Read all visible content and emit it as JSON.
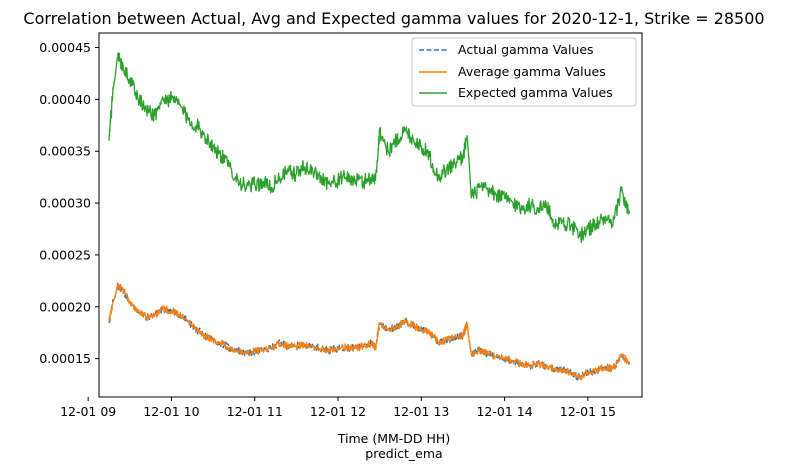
{
  "chart_data": {
    "type": "line",
    "title": "Correlation between Actual, Avg and Expected gamma values for 2020-12-1, Strike = 28500",
    "xlabel": "Time (MM-DD HH)",
    "xlabel2": "predict_ema",
    "ylabel": "",
    "xlim": [
      9.13,
      15.65
    ],
    "ylim": [
      0.000113,
      0.000464
    ],
    "x_ticks": [
      {
        "value": 9,
        "label": "12-01 09"
      },
      {
        "value": 10,
        "label": "12-01 10"
      },
      {
        "value": 11,
        "label": "12-01 11"
      },
      {
        "value": 12,
        "label": "12-01 12"
      },
      {
        "value": 13,
        "label": "12-01 13"
      },
      {
        "value": 14,
        "label": "12-01 14"
      },
      {
        "value": 15,
        "label": "12-01 15"
      }
    ],
    "y_ticks": [
      {
        "value": 0.00015,
        "label": "0.00015"
      },
      {
        "value": 0.0002,
        "label": "0.00020"
      },
      {
        "value": 0.00025,
        "label": "0.00025"
      },
      {
        "value": 0.0003,
        "label": "0.00030"
      },
      {
        "value": 0.00035,
        "label": "0.00035"
      },
      {
        "value": 0.0004,
        "label": "0.00040"
      },
      {
        "value": 0.00045,
        "label": "0.00045"
      }
    ],
    "grid": false,
    "legend_position": "top-right",
    "series": [
      {
        "name": "Actual gamma Values",
        "color": "#1f77b4",
        "style": "dashed",
        "x": [
          9.25,
          9.3,
          9.35,
          9.4,
          9.5,
          9.6,
          9.7,
          9.8,
          9.9,
          10.0,
          10.1,
          10.2,
          10.3,
          10.4,
          10.5,
          10.6,
          10.7,
          10.8,
          10.9,
          11.0,
          11.1,
          11.2,
          11.3,
          11.4,
          11.5,
          11.6,
          11.7,
          11.8,
          11.9,
          12.0,
          12.1,
          12.2,
          12.3,
          12.4,
          12.45,
          12.5,
          12.6,
          12.7,
          12.8,
          12.9,
          13.0,
          13.1,
          13.2,
          13.3,
          13.4,
          13.5,
          13.55,
          13.6,
          13.7,
          13.8,
          13.9,
          14.0,
          14.1,
          14.2,
          14.3,
          14.4,
          14.5,
          14.6,
          14.7,
          14.8,
          14.9,
          15.0,
          15.1,
          15.2,
          15.3,
          15.4,
          15.5
        ],
        "y": [
          0.000185,
          0.000205,
          0.00022,
          0.000218,
          0.000205,
          0.000195,
          0.00019,
          0.000192,
          0.000198,
          0.000196,
          0.000192,
          0.000186,
          0.000178,
          0.000172,
          0.000168,
          0.000165,
          0.00016,
          0.000158,
          0.000155,
          0.000157,
          0.000158,
          0.00016,
          0.000165,
          0.000162,
          0.000162,
          0.000164,
          0.000162,
          0.00016,
          0.000158,
          0.00016,
          0.000161,
          0.00016,
          0.000162,
          0.000165,
          0.00016,
          0.000184,
          0.000178,
          0.00018,
          0.000186,
          0.000182,
          0.000178,
          0.000175,
          0.000166,
          0.000168,
          0.00017,
          0.000172,
          0.000184,
          0.000155,
          0.000158,
          0.000155,
          0.000152,
          0.00015,
          0.000148,
          0.000145,
          0.000143,
          0.000145,
          0.000142,
          0.00014,
          0.000139,
          0.000136,
          0.000132,
          0.000137,
          0.000138,
          0.000142,
          0.00014,
          0.000152,
          0.000147
        ]
      },
      {
        "name": "Average gamma Values",
        "color": "#ff7f0e",
        "style": "solid",
        "x": [
          9.25,
          9.3,
          9.35,
          9.4,
          9.5,
          9.6,
          9.7,
          9.8,
          9.9,
          10.0,
          10.1,
          10.2,
          10.3,
          10.4,
          10.5,
          10.6,
          10.7,
          10.8,
          10.9,
          11.0,
          11.1,
          11.2,
          11.3,
          11.4,
          11.5,
          11.6,
          11.7,
          11.8,
          11.9,
          12.0,
          12.1,
          12.2,
          12.3,
          12.4,
          12.45,
          12.5,
          12.6,
          12.7,
          12.8,
          12.9,
          13.0,
          13.1,
          13.2,
          13.3,
          13.4,
          13.5,
          13.55,
          13.6,
          13.7,
          13.8,
          13.9,
          14.0,
          14.1,
          14.2,
          14.3,
          14.4,
          14.5,
          14.6,
          14.7,
          14.8,
          14.9,
          15.0,
          15.1,
          15.2,
          15.3,
          15.4,
          15.5
        ],
        "y": [
          0.000185,
          0.000205,
          0.00022,
          0.000218,
          0.000205,
          0.000195,
          0.00019,
          0.000192,
          0.000198,
          0.000196,
          0.000192,
          0.000186,
          0.000178,
          0.000172,
          0.000168,
          0.000165,
          0.00016,
          0.000158,
          0.000155,
          0.000157,
          0.000158,
          0.00016,
          0.000165,
          0.000162,
          0.000162,
          0.000164,
          0.000162,
          0.00016,
          0.000158,
          0.00016,
          0.000161,
          0.00016,
          0.000162,
          0.000165,
          0.00016,
          0.000184,
          0.000178,
          0.00018,
          0.000186,
          0.000182,
          0.000178,
          0.000175,
          0.000166,
          0.000168,
          0.00017,
          0.000172,
          0.000184,
          0.000155,
          0.000158,
          0.000155,
          0.000152,
          0.00015,
          0.000148,
          0.000145,
          0.000143,
          0.000145,
          0.000142,
          0.00014,
          0.000139,
          0.000136,
          0.000132,
          0.000137,
          0.000138,
          0.000142,
          0.00014,
          0.000152,
          0.000147
        ]
      },
      {
        "name": "Expected gamma Values",
        "color": "#2ca02c",
        "style": "solid",
        "x": [
          9.25,
          9.3,
          9.35,
          9.4,
          9.5,
          9.6,
          9.7,
          9.8,
          9.9,
          10.0,
          10.1,
          10.2,
          10.3,
          10.4,
          10.5,
          10.6,
          10.7,
          10.8,
          10.9,
          11.0,
          11.1,
          11.2,
          11.3,
          11.4,
          11.5,
          11.6,
          11.7,
          11.8,
          11.9,
          12.0,
          12.1,
          12.2,
          12.3,
          12.4,
          12.45,
          12.5,
          12.6,
          12.7,
          12.8,
          12.9,
          13.0,
          13.1,
          13.2,
          13.3,
          13.4,
          13.5,
          13.55,
          13.6,
          13.7,
          13.8,
          13.9,
          14.0,
          14.1,
          14.2,
          14.3,
          14.4,
          14.5,
          14.6,
          14.7,
          14.8,
          14.9,
          15.0,
          15.1,
          15.2,
          15.3,
          15.4,
          15.5
        ],
        "y": [
          0.00036,
          0.00041,
          0.00044,
          0.000435,
          0.00042,
          0.0004,
          0.00039,
          0.000385,
          0.0004,
          0.0004,
          0.000395,
          0.00038,
          0.000375,
          0.000365,
          0.000355,
          0.000345,
          0.000335,
          0.000322,
          0.000315,
          0.000318,
          0.00032,
          0.000315,
          0.000325,
          0.00033,
          0.000328,
          0.000335,
          0.00033,
          0.000325,
          0.000318,
          0.000322,
          0.000325,
          0.000322,
          0.00032,
          0.000325,
          0.000322,
          0.00037,
          0.00035,
          0.00036,
          0.00037,
          0.000362,
          0.000355,
          0.000345,
          0.000325,
          0.000332,
          0.000338,
          0.000345,
          0.000365,
          0.000305,
          0.000315,
          0.000312,
          0.000308,
          0.000305,
          0.0003,
          0.000295,
          0.000298,
          0.000295,
          0.000298,
          0.00028,
          0.000282,
          0.000278,
          0.000268,
          0.000275,
          0.00028,
          0.000285,
          0.000278,
          0.000312,
          0.00029
        ]
      }
    ]
  }
}
